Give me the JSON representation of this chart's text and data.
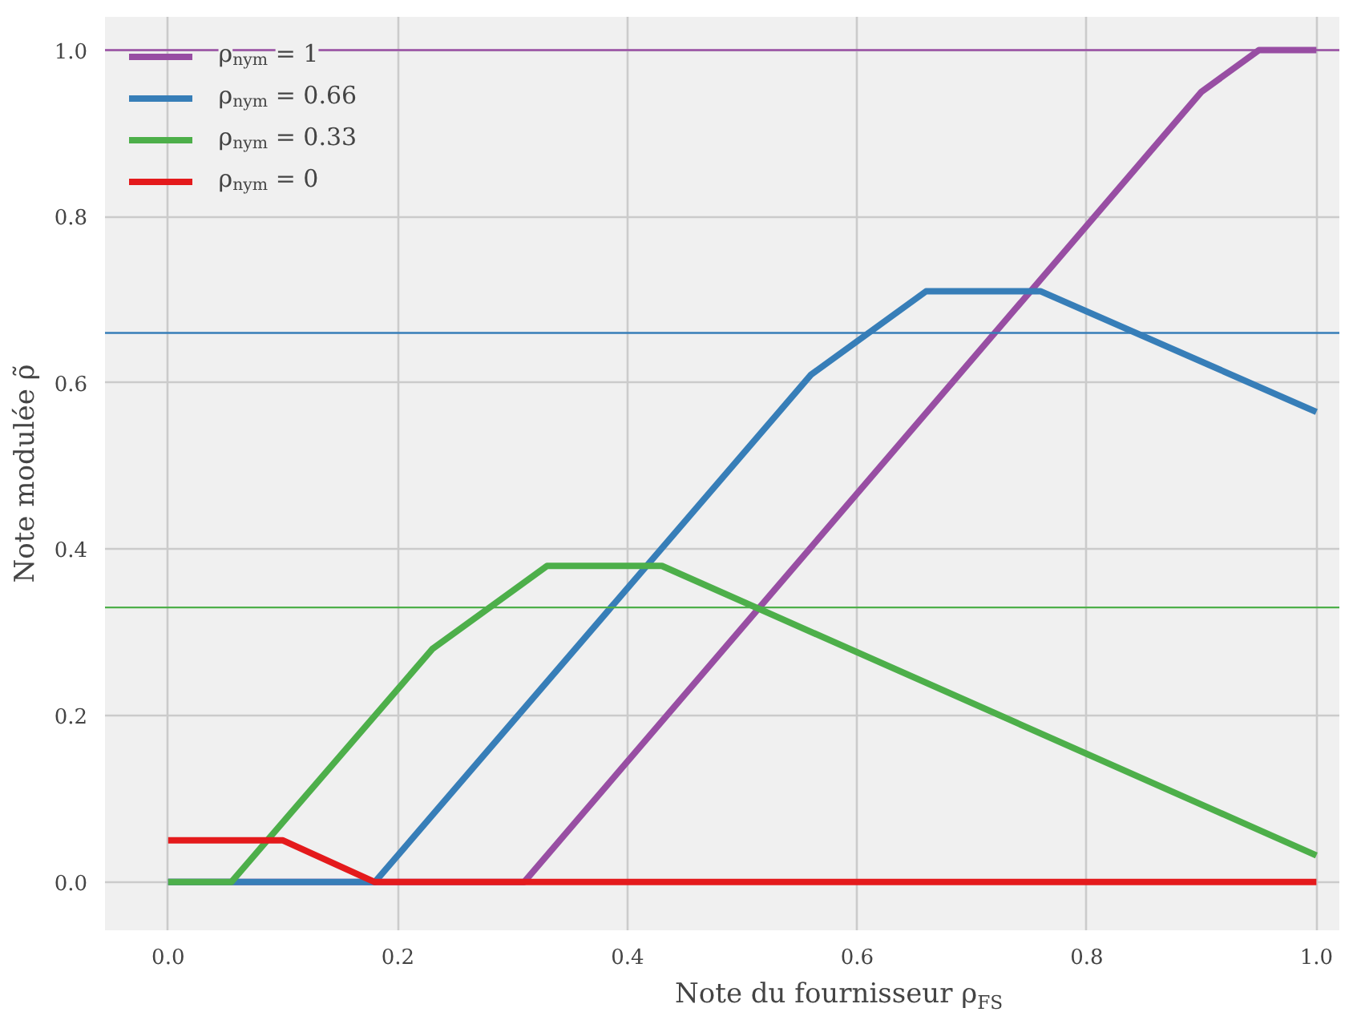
{
  "chart_data": {
    "type": "line",
    "xlabel": "Note du fournisseur ρ$_{FS}$",
    "ylabel": "Note modulée ρ̃",
    "series": [
      {
        "name": "ρ$_{nym}$ = 1",
        "color": "#984ea3",
        "x": [
          0,
          0.31,
          0.9,
          0.95,
          1.0
        ],
        "values": [
          0,
          0,
          0.95,
          1.0,
          1.0
        ]
      },
      {
        "name": "ρ$_{nym}$ = 0.66",
        "color": "#377eb8",
        "x": [
          0,
          0.18,
          0.56,
          0.66,
          0.76,
          1.0
        ],
        "values": [
          0,
          0,
          0.61,
          0.71,
          0.71,
          0.565
        ]
      },
      {
        "name": "ρ$_{nym}$ = 0.33",
        "color": "#4daf4a",
        "x": [
          0,
          0.055,
          0.23,
          0.33,
          0.43,
          1.0
        ],
        "values": [
          0,
          0,
          0.28,
          0.38,
          0.38,
          0.032
        ]
      },
      {
        "name": "ρ$_{nym}$ = 0",
        "color": "#e41a1c",
        "x": [
          0,
          0.1,
          0.18,
          1.0
        ],
        "values": [
          0.05,
          0.05,
          0,
          0
        ]
      }
    ],
    "ref_lines": [
      {
        "axis": "y",
        "value": 1.0,
        "color": "#984ea3"
      },
      {
        "axis": "y",
        "value": 0.66,
        "color": "#377eb8"
      },
      {
        "axis": "y",
        "value": 0.33,
        "color": "#4daf4a"
      }
    ],
    "xlim": [
      -0.055,
      1.02
    ],
    "ylim": [
      -0.058,
      1.04
    ],
    "xticks": [
      {
        "value": 0,
        "label": "0.0"
      },
      0.2,
      0.4,
      0.6,
      0.8,
      {
        "value": 1,
        "label": "1.0"
      }
    ],
    "yticks": [
      {
        "value": 0,
        "label": "0.0"
      },
      0.2,
      0.4,
      0.6,
      0.8,
      {
        "value": 1,
        "label": "1.0"
      }
    ],
    "grid": true,
    "legend": "top left",
    "marker": "none",
    "line_style": "solid"
  }
}
